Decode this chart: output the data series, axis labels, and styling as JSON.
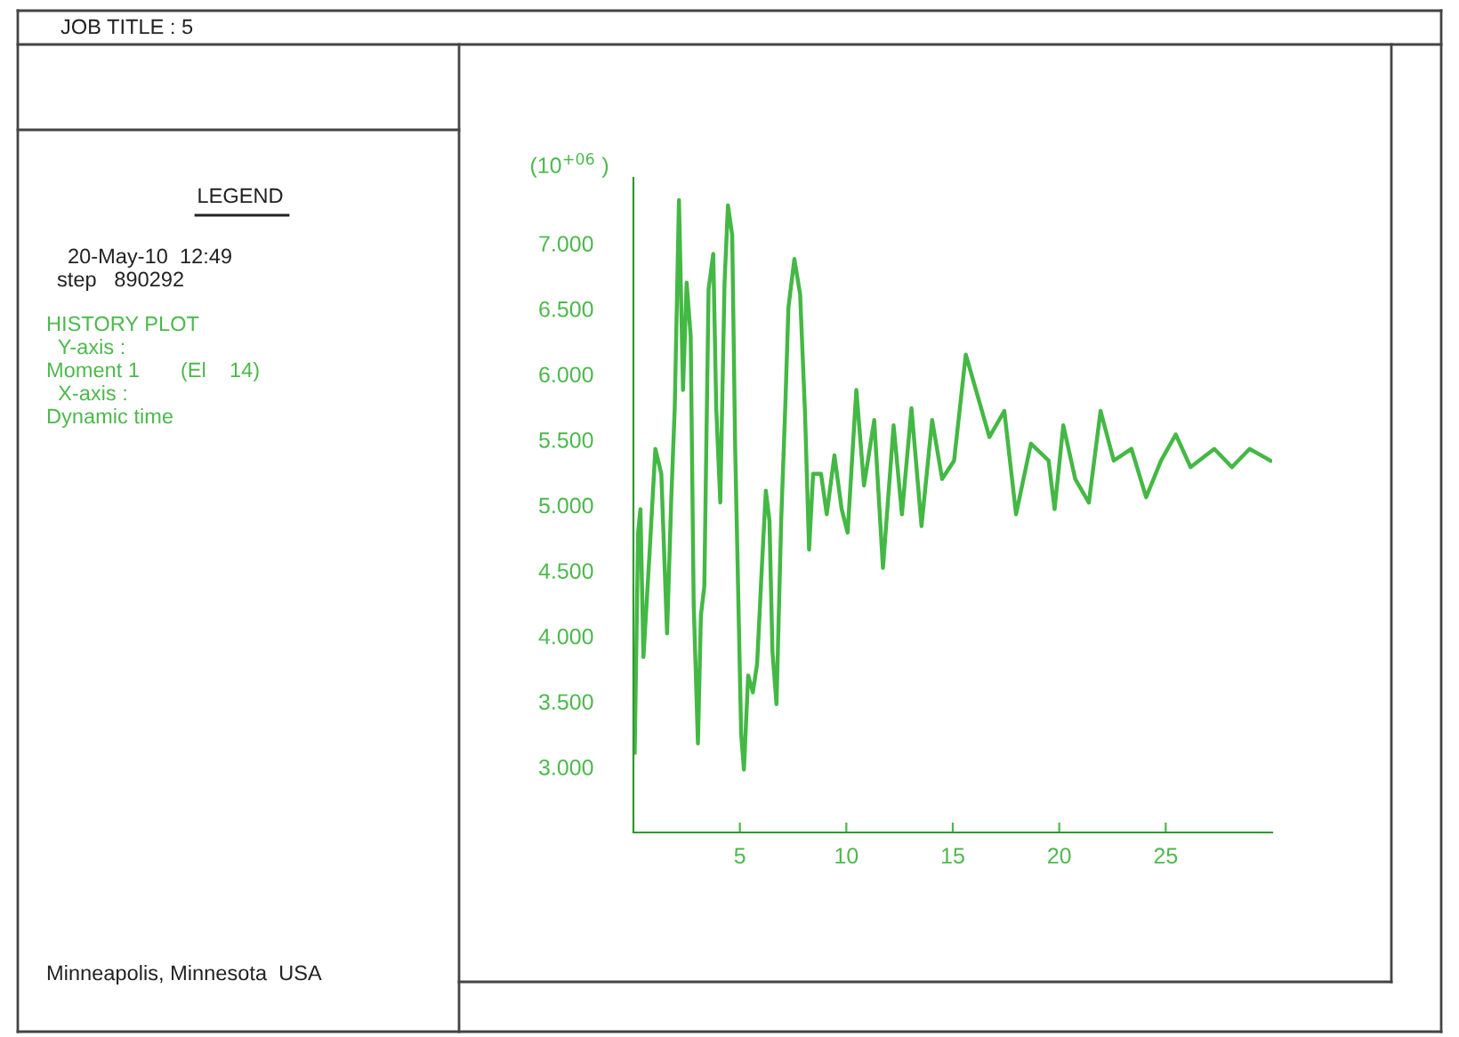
{
  "chart_data": {
    "type": "line",
    "title": "JOB TITLE : 5",
    "ylabel": "(10$^{+06}$ )",
    "annotations": [
      "LEGEND",
      "20-May-10  12:49",
      "step   890292",
      "HISTORY PLOT",
      "  Y-axis :",
      "Moment 1       (El    14)",
      "  X-axis :",
      "Dynamic time",
      "Minneapolis, Minnesota  USA"
    ],
    "x": [
      0.06,
      0.22,
      0.33,
      0.47,
      0.75,
      1.03,
      1.31,
      1.58,
      1.78,
      1.94,
      2.14,
      2.33,
      2.5,
      2.69,
      2.83,
      3.03,
      3.17,
      3.33,
      3.53,
      3.75,
      3.89,
      4.08,
      4.28,
      4.44,
      4.64,
      4.78,
      4.92,
      5.06,
      5.19,
      5.39,
      5.61,
      5.81,
      6.03,
      6.22,
      6.39,
      6.53,
      6.72,
      6.94,
      7.14,
      7.28,
      7.56,
      7.83,
      8.06,
      8.25,
      8.44,
      8.81,
      9.08,
      9.44,
      9.78,
      10.06,
      10.47,
      10.83,
      11.31,
      11.72,
      12.22,
      12.61,
      13.06,
      13.53,
      14.03,
      14.5,
      15.06,
      15.61,
      16.72,
      17.42,
      17.97,
      18.67,
      19.5,
      19.78,
      20.19,
      20.75,
      21.39,
      21.94,
      22.56,
      23.39,
      24.08,
      24.78,
      25.47,
      26.17,
      27.28,
      28.11,
      28.94,
      29.92
    ],
    "series": [
      {
        "color": "#44b844",
        "values": [
          3.11,
          4.79,
          4.97,
          3.84,
          4.61,
          5.43,
          5.24,
          4.02,
          5.06,
          5.74,
          7.33,
          5.88,
          6.7,
          6.29,
          4.25,
          3.18,
          4.16,
          4.38,
          6.65,
          6.92,
          5.74,
          5.02,
          6.7,
          7.29,
          7.06,
          5.43,
          4.34,
          3.25,
          2.98,
          3.7,
          3.57,
          3.79,
          4.52,
          5.11,
          4.88,
          3.88,
          3.48,
          4.88,
          5.79,
          6.51,
          6.88,
          6.61,
          5.7,
          4.66,
          5.24,
          5.24,
          4.93,
          5.38,
          4.97,
          4.79,
          5.88,
          5.15,
          5.65,
          4.52,
          5.61,
          4.93,
          5.74,
          4.84,
          5.65,
          5.2,
          5.34,
          6.15,
          5.52,
          5.72,
          4.93,
          5.47,
          5.34,
          4.97,
          5.61,
          5.2,
          5.02,
          5.72,
          5.34,
          5.43,
          5.06,
          5.34,
          5.54,
          5.29,
          5.43,
          5.29,
          5.43,
          5.34
        ]
      }
    ],
    "xlim": [
      0,
      30
    ],
    "ylim": [
      2.5,
      7.5
    ],
    "xticks": [
      5,
      10,
      15,
      20,
      25
    ],
    "yticks": [
      {
        "value": 3,
        "label": "3.000"
      },
      {
        "value": 3.5,
        "label": "3.500"
      },
      {
        "value": 4,
        "label": "4.000"
      },
      {
        "value": 4.5,
        "label": "4.500"
      },
      {
        "value": 5,
        "label": "5.000"
      },
      {
        "value": 5.5,
        "label": "5.500"
      },
      {
        "value": 6,
        "label": "6.000"
      },
      {
        "value": 6.5,
        "label": "6.500"
      },
      {
        "value": 7,
        "label": "7.000"
      }
    ],
    "grid": false,
    "marker": "none",
    "line_style": "solid"
  }
}
